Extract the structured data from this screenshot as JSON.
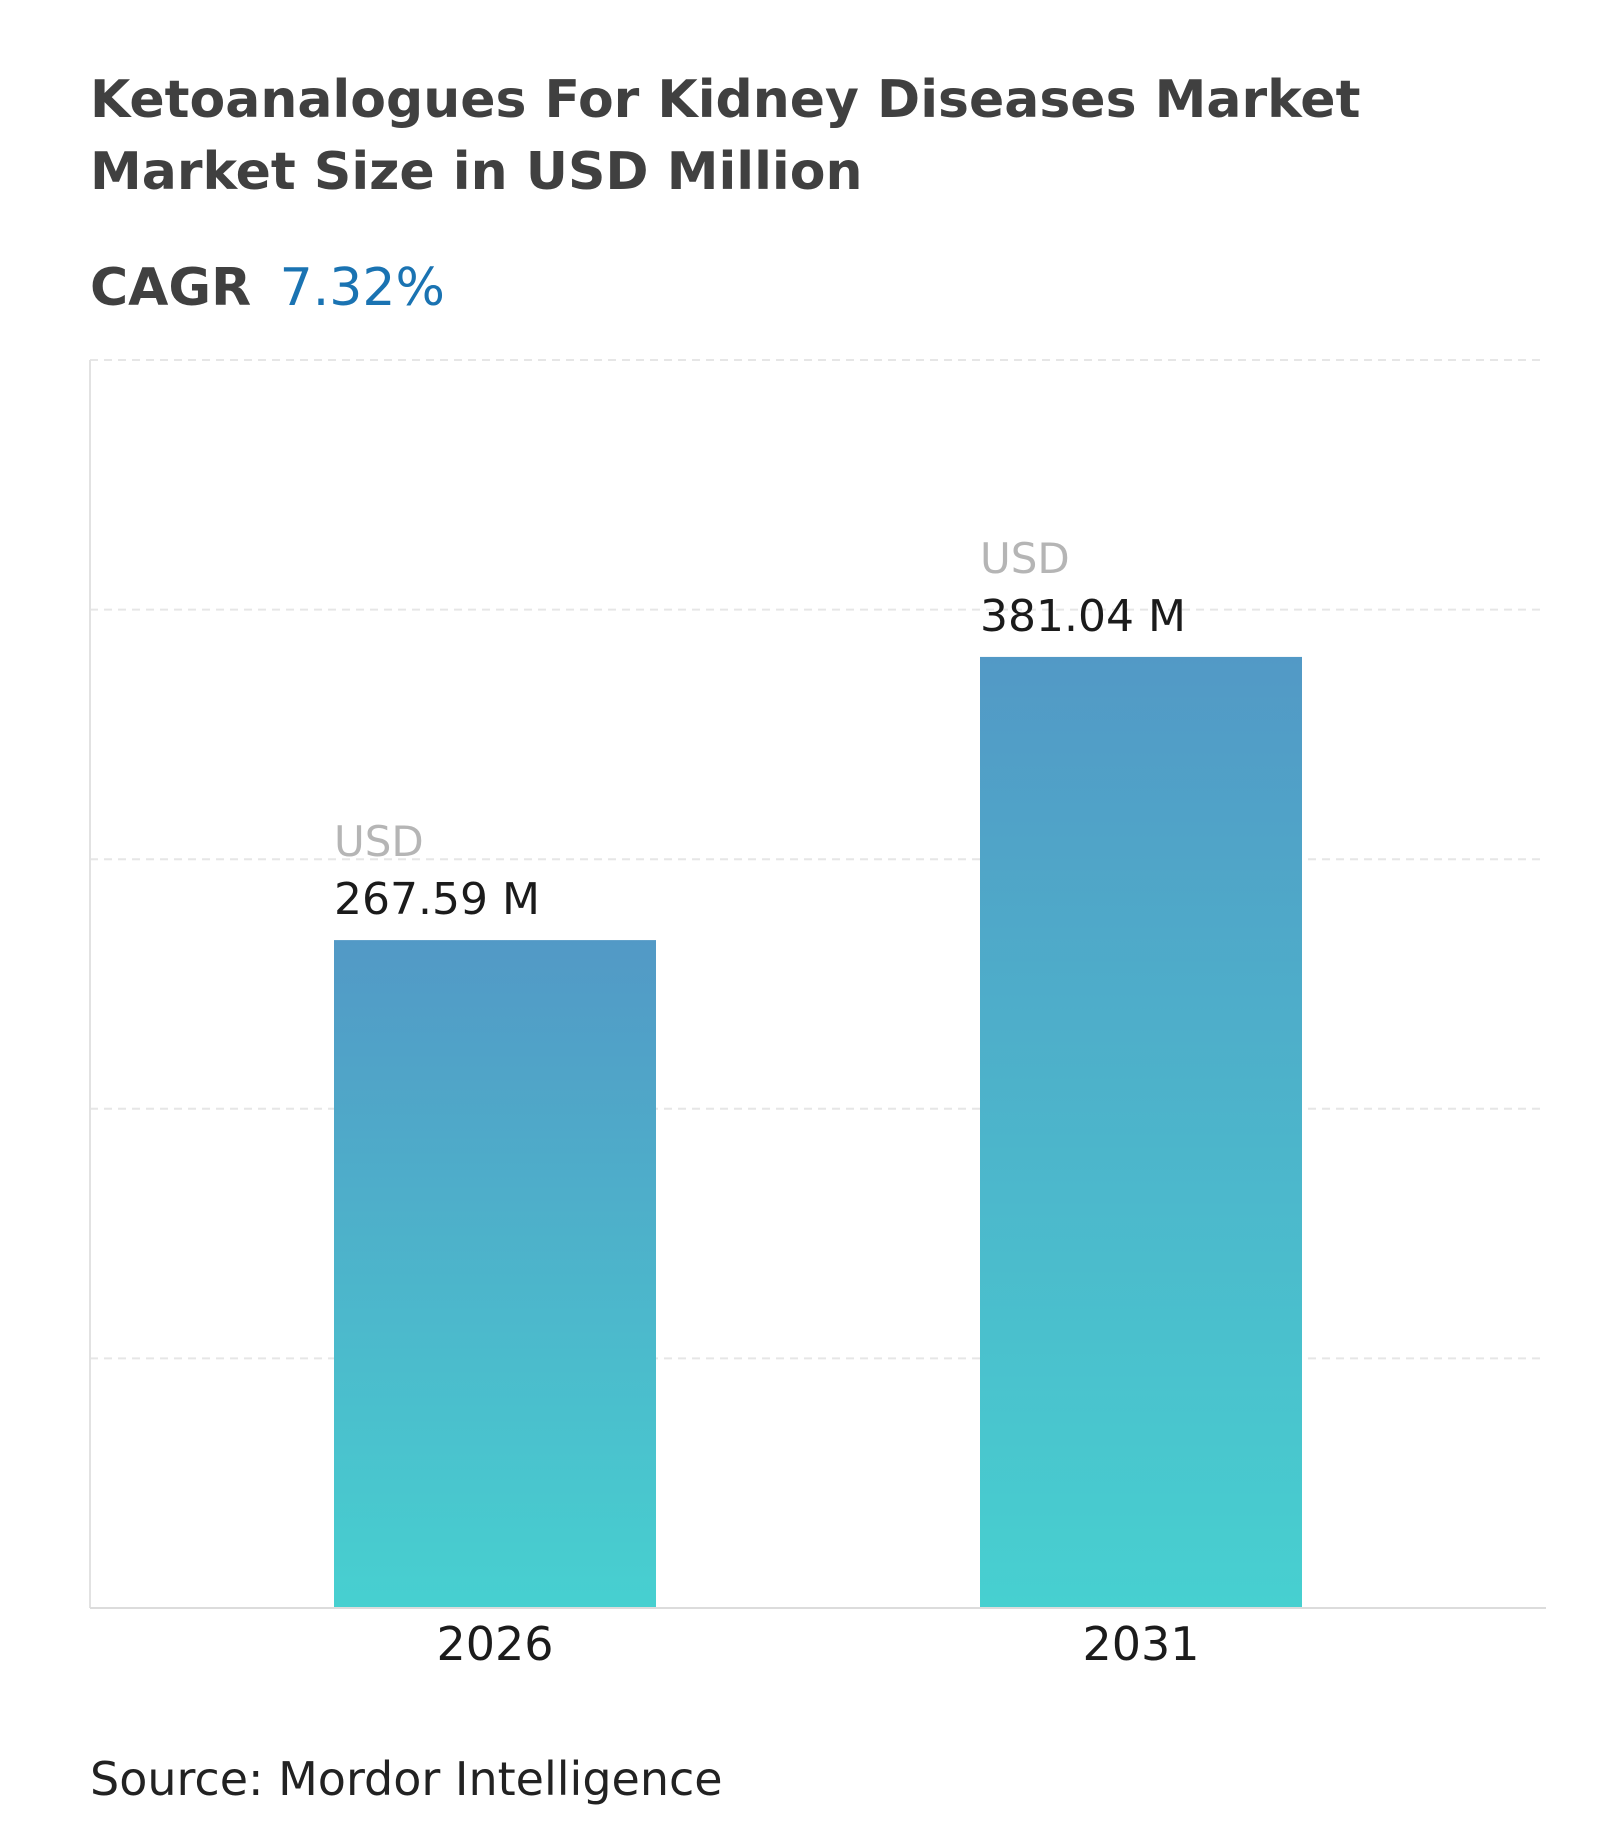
{
  "header": {
    "title": "Ketoanalogues For Kidney Diseases Market",
    "subtitle": "Market Size in USD Million",
    "cagr_label": "CAGR",
    "cagr_value": "7.32%"
  },
  "colors": {
    "bar_top": "#5299c6",
    "bar_bottom": "#47d0d0",
    "cagr_accent": "#1a73b2",
    "gridline": "#e6e6e6",
    "value_prefix": "#b5b5b5",
    "value_text": "#1b1b1b"
  },
  "chart_data": {
    "type": "bar",
    "categories": [
      "2026",
      "2031"
    ],
    "values": [
      267.59,
      381.04
    ],
    "value_prefix": "USD",
    "value_labels": [
      "267.59 M",
      "381.04 M"
    ],
    "ylim": [
      0,
      500
    ],
    "grid": true,
    "title": "Ketoanalogues For Kidney Diseases Market",
    "subtitle": "Market Size in USD Million",
    "xlabel": "",
    "ylabel": ""
  },
  "footer": {
    "source": "Source: Mordor Intelligence"
  }
}
